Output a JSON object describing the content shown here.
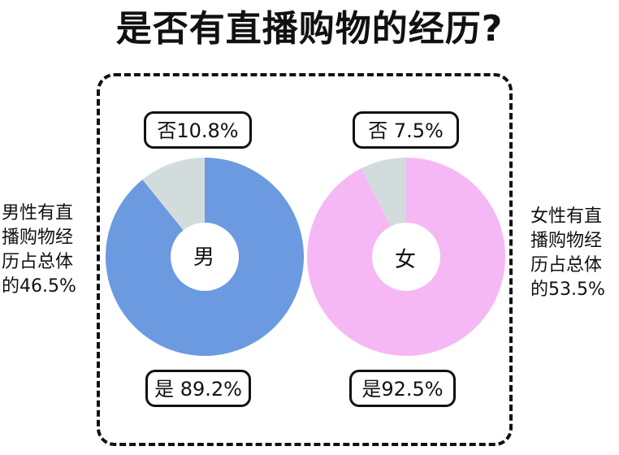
{
  "title": "是否有直播购物的经历?",
  "left_note": {
    "lines": [
      "男性有直",
      "播购物经",
      "历占总体",
      "的46.5%"
    ]
  },
  "right_note": {
    "lines": [
      "女性有直",
      "播购物经",
      "历占总体",
      "的53.5%"
    ]
  },
  "charts": {
    "male": {
      "center_label": "男",
      "no_label": "否10.8%",
      "yes_label": "是 89.2%"
    },
    "female": {
      "center_label": "女",
      "no_label": "否 7.5%",
      "yes_label": "是92.5%"
    }
  },
  "chart_data": [
    {
      "type": "pie",
      "center_label": "男",
      "slices": [
        {
          "label": "是",
          "value": 89.2,
          "color": "#6b9ae0"
        },
        {
          "label": "否",
          "value": 10.8,
          "color": "#d2dcdc"
        }
      ]
    },
    {
      "type": "pie",
      "center_label": "女",
      "slices": [
        {
          "label": "是",
          "value": 92.5,
          "color": "#f5b8f4"
        },
        {
          "label": "否",
          "value": 7.5,
          "color": "#d2dcdc"
        }
      ]
    }
  ]
}
